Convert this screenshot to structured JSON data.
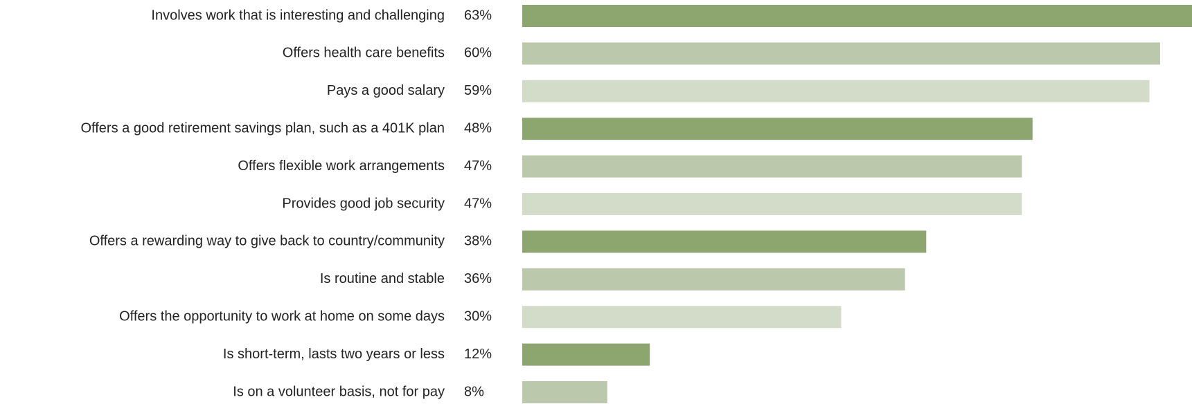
{
  "chart_data": {
    "type": "hbar",
    "categories": [
      "Involves work that is interesting and challenging",
      "Offers health care benefits",
      "Pays a good salary",
      "Offers a good retirement savings plan, such as a 401K plan",
      "Offers flexible work arrangements",
      "Provides good job security",
      "Offers a rewarding way to give back to country/community",
      "Is routine and stable",
      "Offers the opportunity to work at home on some days",
      "Is short-term, lasts two years or less",
      "Is on a volunteer basis, not for pay"
    ],
    "values": [
      63,
      60,
      59,
      48,
      47,
      47,
      38,
      36,
      30,
      12,
      8
    ],
    "value_labels": [
      "63%",
      "60%",
      "59%",
      "48%",
      "47%",
      "47%",
      "38%",
      "36%",
      "30%",
      "12%",
      "8%"
    ],
    "colors": [
      "#8da56f",
      "#bcc8ab",
      "#d3dcc8",
      "#8da56f",
      "#bcc8ab",
      "#d3dcc8",
      "#8da56f",
      "#bcc8ab",
      "#d3dcc8",
      "#8da56f",
      "#bcc8ab"
    ]
  }
}
